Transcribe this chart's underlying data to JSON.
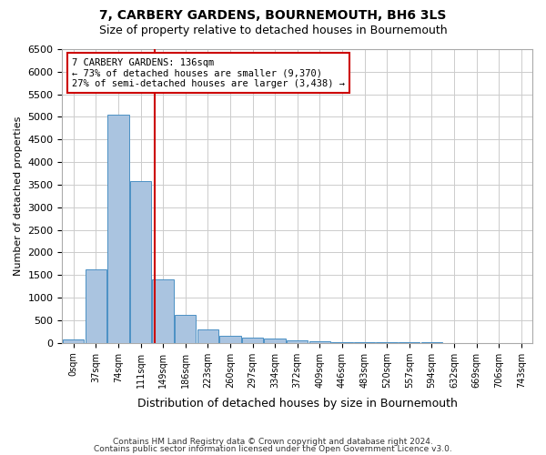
{
  "title": "7, CARBERY GARDENS, BOURNEMOUTH, BH6 3LS",
  "subtitle": "Size of property relative to detached houses in Bournemouth",
  "xlabel": "Distribution of detached houses by size in Bournemouth",
  "ylabel": "Number of detached properties",
  "bin_labels": [
    "0sqm",
    "37sqm",
    "74sqm",
    "111sqm",
    "149sqm",
    "186sqm",
    "223sqm",
    "260sqm",
    "297sqm",
    "334sqm",
    "372sqm",
    "409sqm",
    "446sqm",
    "483sqm",
    "520sqm",
    "557sqm",
    "594sqm",
    "632sqm",
    "669sqm",
    "706sqm",
    "743sqm"
  ],
  "bar_values": [
    80,
    1620,
    5050,
    3580,
    1400,
    620,
    300,
    150,
    120,
    100,
    60,
    30,
    15,
    10,
    8,
    6,
    4,
    3,
    3,
    2,
    2
  ],
  "bar_color": "#aac4e0",
  "bar_edge_color": "#4a90c4",
  "property_line_x": 3.65,
  "property_label": "7 CARBERY GARDENS: 136sqm",
  "pct_smaller": "73%",
  "count_smaller": "9,370",
  "pct_larger": "27%",
  "count_larger": "3,438",
  "annotation_box_color": "#cc0000",
  "vline_color": "#cc0000",
  "ylim": [
    0,
    6500
  ],
  "yticks": [
    0,
    500,
    1000,
    1500,
    2000,
    2500,
    3000,
    3500,
    4000,
    4500,
    5000,
    5500,
    6000,
    6500
  ],
  "grid_color": "#cccccc",
  "background_color": "#ffffff",
  "footnote1": "Contains HM Land Registry data © Crown copyright and database right 2024.",
  "footnote2": "Contains public sector information licensed under the Open Government Licence v3.0."
}
